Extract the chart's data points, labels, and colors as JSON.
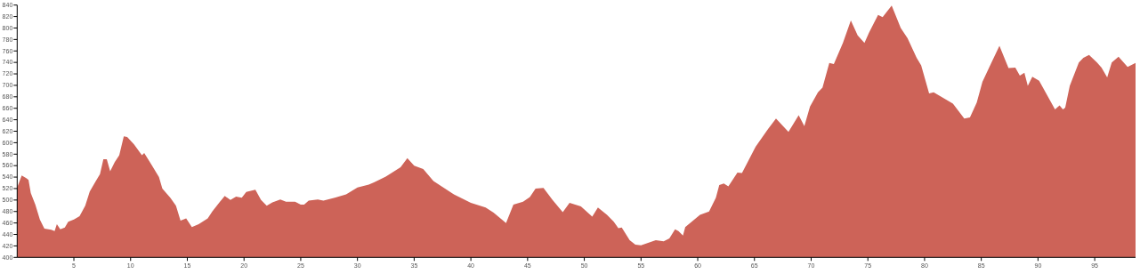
{
  "chart_data": {
    "type": "area",
    "x": [
      0,
      0.4,
      0.8,
      1.0,
      1.2,
      1.6,
      2.0,
      2.4,
      3.0,
      3.3,
      3.5,
      3.8,
      4.2,
      4.5,
      5,
      5.5,
      6,
      6.4,
      6.9,
      7.3,
      7.6,
      7.9,
      8.2,
      8.6,
      9.0,
      9.4,
      9.7,
      10.3,
      11.0,
      11.2,
      11.8,
      12.5,
      12.8,
      13.5,
      14.0,
      14.4,
      14.9,
      15.4,
      16.0,
      16.8,
      17.2,
      17.8,
      18.3,
      18.8,
      19.3,
      19.8,
      20.2,
      20.6,
      21.0,
      21.5,
      22.0,
      22.5,
      23.2,
      23.7,
      24.5,
      25.0,
      25.3,
      25.7,
      26.5,
      27.0,
      28.0,
      29.0,
      30.0,
      31.0,
      31.5,
      32.5,
      33.8,
      34.4,
      35.0,
      35.8,
      36.7,
      38.5,
      40.0,
      41.3,
      42.0,
      42.8,
      43.1,
      43.75,
      44.6,
      45.2,
      45.7,
      46.4,
      47.2,
      48.1,
      48.7,
      49.7,
      50.7,
      51.2,
      52.0,
      52.6,
      53.0,
      53.3,
      54.0,
      54.5,
      55.0,
      56.3,
      57.0,
      57.5,
      58.0,
      58.3,
      58.7,
      58.9,
      60.2,
      61.0,
      61.6,
      61.9,
      62.3,
      62.7,
      63.5,
      63.9,
      64.4,
      65.1,
      66.2,
      66.9,
      68.0,
      68.9,
      69.4,
      69.9,
      70.6,
      71.0,
      71.6,
      72.0,
      72.8,
      73.5,
      74.1,
      74.7,
      75.1,
      75.9,
      76.3,
      77.1,
      77.9,
      78.5,
      79.3,
      79.7,
      80.4,
      80.8,
      81.4,
      82.5,
      83.5,
      84.0,
      84.6,
      85.1,
      85.9,
      86.6,
      87.4,
      88.0,
      88.4,
      88.8,
      89.1,
      89.5,
      90.1,
      91.5,
      91.9,
      92.2,
      92.4,
      92.8,
      93.6,
      94.0,
      94.5,
      95.2,
      95.6,
      96.1,
      96.5,
      97.1,
      97.9,
      98.6
    ],
    "series": [
      {
        "color": "#cd6358",
        "values": [
          522,
          543,
          538,
          535,
          512,
          492,
          466,
          450,
          448,
          446,
          458,
          449,
          452,
          462,
          466,
          472,
          490,
          515,
          532,
          545,
          571,
          571,
          550,
          566,
          578,
          611,
          610,
          597,
          578,
          582,
          563,
          540,
          520,
          504,
          490,
          464,
          468,
          453,
          458,
          468,
          480,
          495,
          507,
          500,
          506,
          504,
          514,
          516,
          518,
          500,
          490,
          496,
          501,
          497,
          497,
          492,
          492,
          499,
          501,
          499,
          504,
          510,
          522,
          527,
          531,
          541,
          557,
          573,
          560,
          554,
          533,
          510,
          495,
          487,
          478,
          465,
          460,
          492,
          497,
          505,
          520,
          521,
          500,
          479,
          495,
          489,
          471,
          487,
          474,
          462,
          451,
          452,
          430,
          422,
          421,
          430,
          428,
          433,
          449,
          446,
          438,
          453,
          474,
          480,
          504,
          526,
          529,
          524,
          548,
          547,
          566,
          593,
          624,
          642,
          619,
          648,
          629,
          663,
          688,
          696,
          739,
          737,
          774,
          813,
          787,
          774,
          792,
          823,
          819,
          839,
          800,
          782,
          748,
          735,
          686,
          688,
          681,
          668,
          642,
          644,
          670,
          706,
          740,
          769,
          730,
          731,
          717,
          722,
          699,
          715,
          708,
          658,
          665,
          658,
          661,
          699,
          740,
          748,
          753,
          740,
          731,
          714,
          740,
          750,
          732,
          739
        ]
      }
    ],
    "xlim": [
      0,
      98.6
    ],
    "ylim": [
      400,
      840
    ],
    "xticks": [
      5,
      10,
      15,
      20,
      25,
      30,
      35,
      40,
      45,
      50,
      55,
      60,
      65,
      70,
      75,
      80,
      85,
      90,
      95
    ],
    "yticks": [
      400,
      420,
      440,
      460,
      480,
      500,
      520,
      540,
      560,
      580,
      600,
      620,
      640,
      660,
      680,
      700,
      720,
      740,
      760,
      780,
      800,
      820,
      840
    ],
    "grid": false
  }
}
